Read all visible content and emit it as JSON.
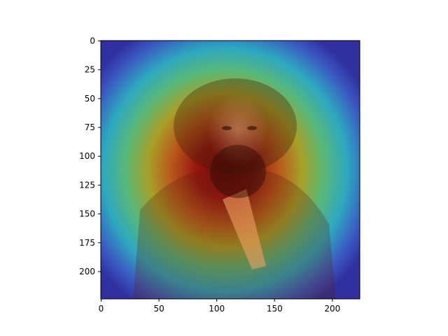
{
  "chart_data": {
    "type": "heatmap",
    "title": "",
    "xlabel": "",
    "ylabel": "",
    "xlim": [
      0,
      224
    ],
    "ylim": [
      224,
      0
    ],
    "x_ticks": [
      0,
      50,
      100,
      150,
      200
    ],
    "y_ticks": [
      0,
      25,
      50,
      75,
      100,
      125,
      150,
      175,
      200
    ],
    "x_tick_labels": [
      "0",
      "50",
      "100",
      "150",
      "200"
    ],
    "y_tick_labels": [
      "0",
      "25",
      "50",
      "75",
      "100",
      "125",
      "150",
      "175",
      "200"
    ],
    "image_content": "portrait of a bearded man with heatmap overlay",
    "colormap": "jet",
    "heat_center": [
      95,
      120
    ],
    "colors": {
      "background": "#ffffff",
      "axis": "#000000",
      "hot": "#8b0a0a",
      "warm": "#c8a020",
      "mid": "#40c0a0",
      "cool": "#3040c0"
    }
  }
}
